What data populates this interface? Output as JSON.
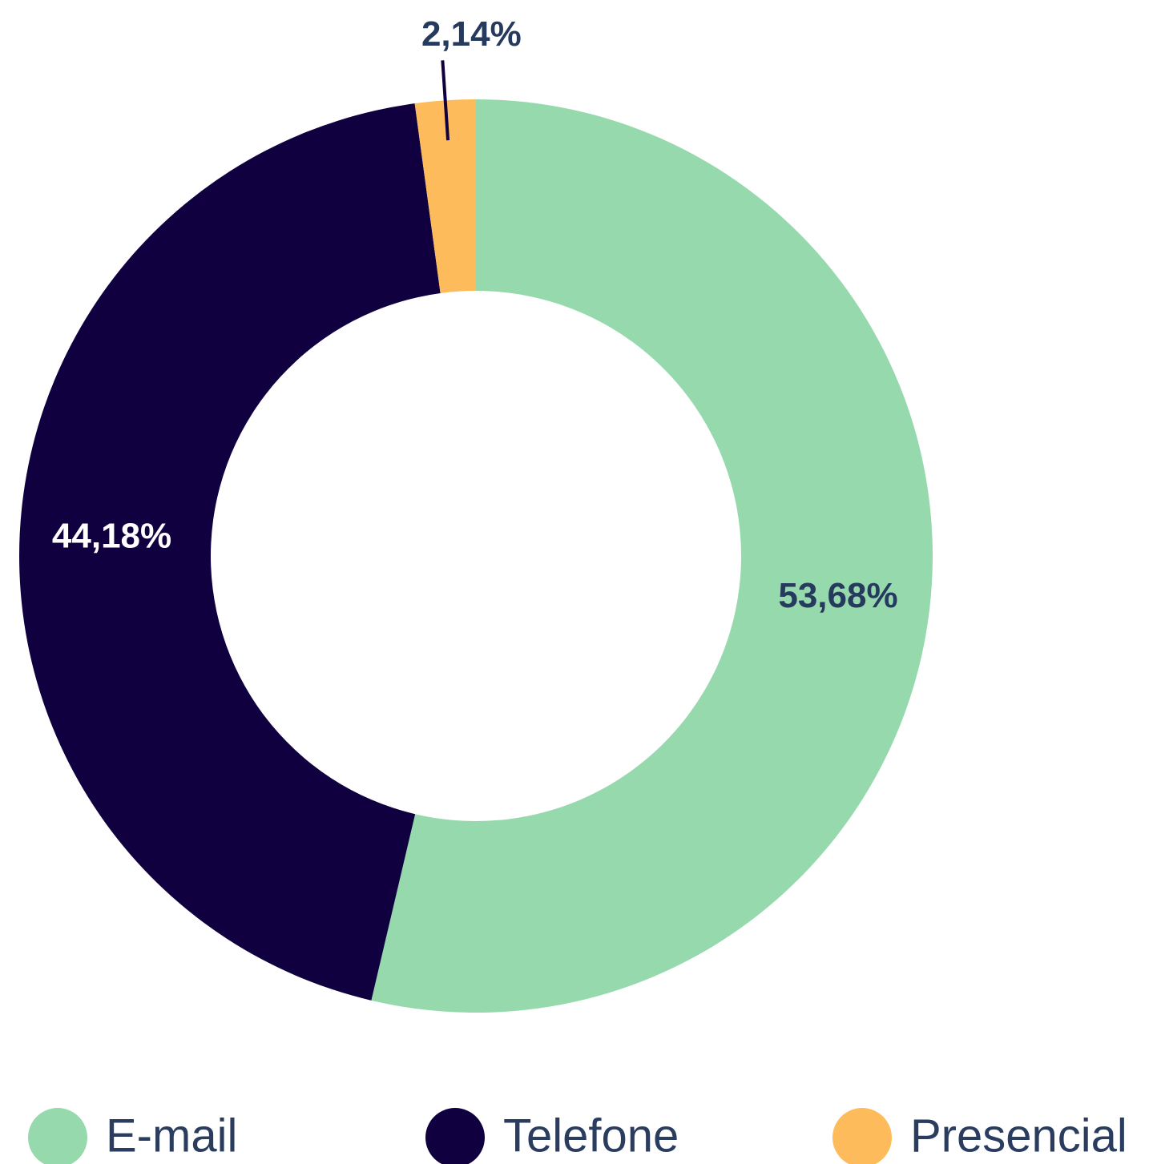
{
  "chart_data": {
    "type": "donut",
    "categories": [
      "E-mail",
      "Telefone",
      "Presencial"
    ],
    "values": [
      53.68,
      44.18,
      2.14
    ],
    "value_labels": [
      "53,68%",
      "44,18%",
      "2,14%"
    ],
    "colors": [
      "#96d9ad",
      "#10003f",
      "#fdbb5c"
    ],
    "legend": "bottom"
  }
}
